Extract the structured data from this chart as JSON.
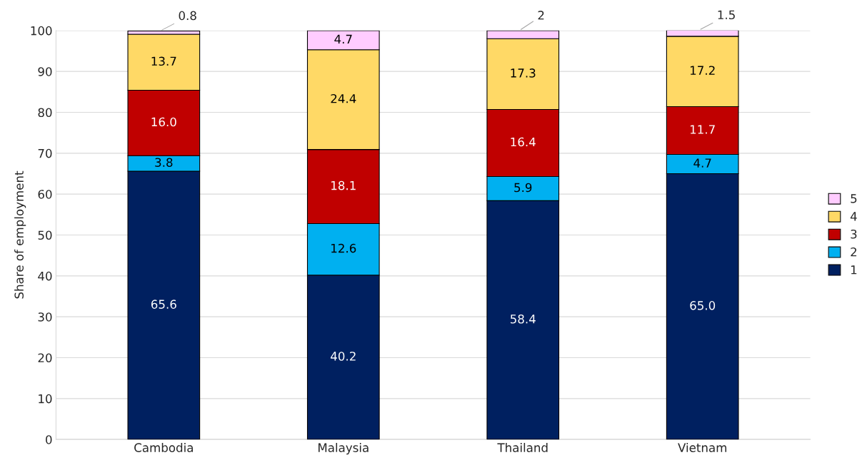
{
  "chart_data": {
    "type": "bar",
    "stacked": true,
    "ylabel": "Share of employment",
    "categories": [
      "Cambodia",
      "Malaysia",
      "Thailand",
      "Vietnam"
    ],
    "series": [
      {
        "name": "1",
        "color": "#002060",
        "values": [
          65.6,
          40.2,
          58.4,
          65.0
        ],
        "value_labels": [
          "65.6",
          "40.2",
          "58.4",
          "65.0"
        ]
      },
      {
        "name": "2",
        "color": "#00b0f0",
        "values": [
          3.8,
          12.6,
          5.9,
          4.7
        ],
        "value_labels": [
          "3.8",
          "12.6",
          "5.9",
          "4.7"
        ]
      },
      {
        "name": "3",
        "color": "#c00000",
        "values": [
          16.0,
          18.1,
          16.4,
          11.7
        ],
        "value_labels": [
          "16.0",
          "18.1",
          "16.4",
          "11.7"
        ]
      },
      {
        "name": "4",
        "color": "#ffd966",
        "values": [
          13.7,
          24.4,
          17.3,
          17.2
        ],
        "value_labels": [
          "13.7",
          "24.4",
          "17.3",
          "17.2"
        ]
      },
      {
        "name": "5",
        "color": "#ffccff",
        "values": [
          0.8,
          4.7,
          2,
          1.5
        ],
        "value_labels": [
          "0.8",
          "4.7",
          "2",
          "1.5"
        ]
      }
    ],
    "ylim": [
      0,
      100
    ],
    "yticks": [
      0,
      10,
      20,
      30,
      40,
      50,
      60,
      70,
      80,
      90,
      100
    ],
    "grid": "y",
    "legend": "right"
  }
}
